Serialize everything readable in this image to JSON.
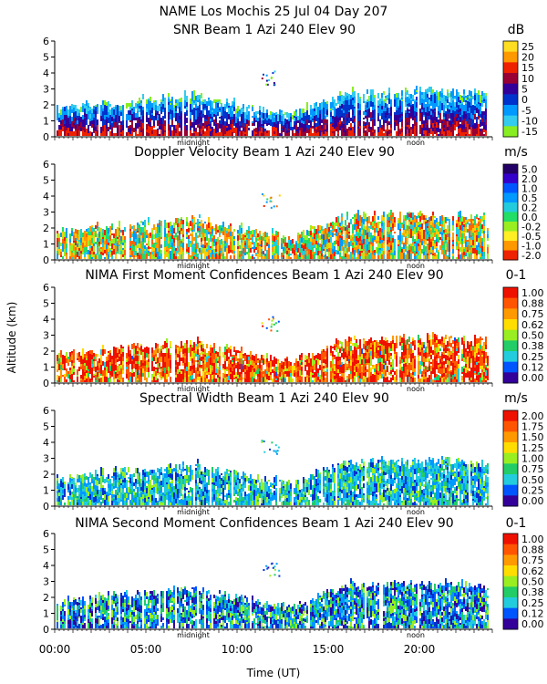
{
  "header": {
    "title_line1": "NAME Los Mochis    25 Jul 04 Day 207"
  },
  "y_axis_label": "Altitude (km)",
  "x_axis": {
    "label": "Time (UT)",
    "ticks": [
      "00:00",
      "05:00",
      "10:00",
      "15:00",
      "20:00"
    ],
    "tick_hours": [
      0,
      5,
      10,
      15,
      20
    ],
    "range_hours": [
      0,
      24
    ],
    "marker_midnight": "midnight",
    "marker_noon": "noon",
    "midnight_hour": 7.6,
    "noon_hour": 19.8
  },
  "chart_data": [
    {
      "type": "heatmap",
      "title": "SNR Beam 1 Azi 240 Elev 90",
      "unit": "dB",
      "ylabel": "Altitude (km)",
      "xlabel": "Time (UT)",
      "ylim": [
        0,
        6
      ],
      "yticks": [
        "0",
        "1",
        "2",
        "3",
        "4",
        "5",
        "6"
      ],
      "colorbar": {
        "labels": [
          "25",
          "20",
          "15",
          "10",
          "5",
          "0",
          "-5",
          "-10",
          "-15"
        ],
        "colors": [
          "#ffdd22",
          "#ff9900",
          "#ee2200",
          "#990033",
          "#330099",
          "#0033cc",
          "#0099ff",
          "#33ccee",
          "#88ee22"
        ]
      },
      "palette": [
        "#88ee22",
        "#33ccee",
        "#0099ff",
        "#0033cc",
        "#330099",
        "#990033",
        "#ee2200"
      ]
    },
    {
      "type": "heatmap",
      "title": "Doppler Velocity Beam 1 Azi 240 Elev 90",
      "unit": "m/s",
      "ylabel": "Altitude (km)",
      "xlabel": "Time (UT)",
      "ylim": [
        0,
        6
      ],
      "yticks": [
        "0",
        "1",
        "2",
        "3",
        "4",
        "5",
        "6"
      ],
      "colorbar": {
        "labels": [
          "5.0",
          "2.0",
          "1.0",
          "0.5",
          "0.2",
          "0.0",
          "-0.2",
          "-0.5",
          "-1.0",
          "-2.0"
        ],
        "colors": [
          "#220066",
          "#3300cc",
          "#0055ff",
          "#0099ff",
          "#22ccdd",
          "#22dd66",
          "#99ee22",
          "#ffee22",
          "#ff9900",
          "#ee2200"
        ]
      },
      "palette": [
        "#ee2200",
        "#ff6600",
        "#ff9900",
        "#ffcc00",
        "#99ee22",
        "#22dd66",
        "#22ccdd",
        "#0099ff"
      ]
    },
    {
      "type": "heatmap",
      "title": "NIMA First Moment Confidences Beam 1 Azi 240 Elev 90",
      "unit": "0-1",
      "ylabel": "Altitude (km)",
      "xlabel": "Time (UT)",
      "ylim": [
        0,
        6
      ],
      "yticks": [
        "0",
        "1",
        "2",
        "3",
        "4",
        "5",
        "6"
      ],
      "colorbar": {
        "labels": [
          "1.00",
          "0.88",
          "0.75",
          "0.62",
          "0.50",
          "0.38",
          "0.25",
          "0.12",
          "0.00"
        ],
        "colors": [
          "#ee1100",
          "#ff5500",
          "#ff9900",
          "#ffdd00",
          "#99ee22",
          "#22cc66",
          "#22ccdd",
          "#0055ff",
          "#330099"
        ]
      },
      "palette": [
        "#ee1100",
        "#ff5500",
        "#ff9900",
        "#ffdd00",
        "#99ee22",
        "#22cc66",
        "#22ccdd",
        "#0055ff"
      ]
    },
    {
      "type": "heatmap",
      "title": "Spectral Width Beam 1 Azi 240 Elev 90",
      "unit": "m/s",
      "ylabel": "Altitude (km)",
      "xlabel": "Time (UT)",
      "ylim": [
        0,
        6
      ],
      "yticks": [
        "0",
        "1",
        "2",
        "3",
        "4",
        "5",
        "6"
      ],
      "colorbar": {
        "labels": [
          "2.00",
          "1.75",
          "1.50",
          "1.25",
          "1.00",
          "0.75",
          "0.50",
          "0.25",
          "0.00"
        ],
        "colors": [
          "#ee1100",
          "#ff5500",
          "#ff9900",
          "#ffdd00",
          "#99ee22",
          "#22cc66",
          "#22ccdd",
          "#0055ff",
          "#330099"
        ]
      },
      "palette": [
        "#0033cc",
        "#0099ff",
        "#22ccdd",
        "#22cc66",
        "#99ee22",
        "#22ccdd",
        "#0099ff"
      ]
    },
    {
      "type": "heatmap",
      "title": "NIMA Second Moment Confidences Beam 1 Azi 240 Elev 90",
      "unit": "0-1",
      "ylabel": "Altitude (km)",
      "xlabel": "Time (UT)",
      "ylim": [
        0,
        6
      ],
      "yticks": [
        "0",
        "1",
        "2",
        "3",
        "4",
        "5",
        "6"
      ],
      "colorbar": {
        "labels": [
          "1.00",
          "0.88",
          "0.75",
          "0.62",
          "0.50",
          "0.38",
          "0.25",
          "0.12",
          "0.00"
        ],
        "colors": [
          "#ee1100",
          "#ff5500",
          "#ff9900",
          "#ffdd00",
          "#99ee22",
          "#22cc66",
          "#22ccdd",
          "#0055ff",
          "#330099"
        ]
      },
      "palette": [
        "#0033cc",
        "#0099ff",
        "#22ccdd",
        "#22cc66",
        "#99ee22",
        "#330099",
        "#0055ff"
      ]
    }
  ]
}
